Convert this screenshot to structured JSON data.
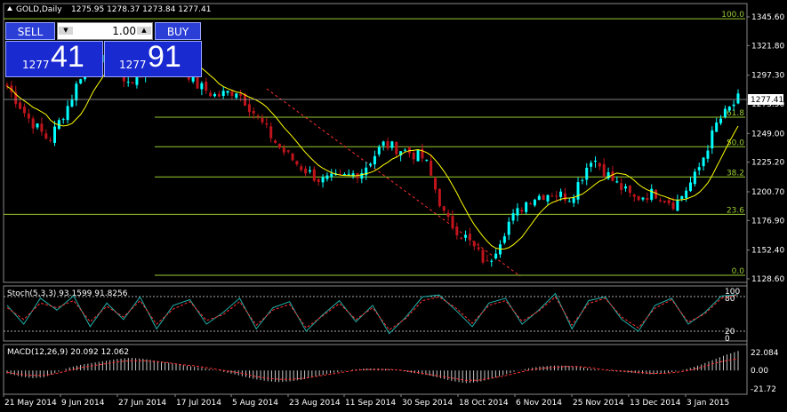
{
  "window": {
    "header_icon": "triangle-up-icon",
    "symbol_label": "GOLD,Daily",
    "ohlc": "1275.95 1278.37 1273.84 1277.41"
  },
  "trade_panel": {
    "sell_label": "SELL",
    "buy_label": "BUY",
    "lot_value": "1.00",
    "sell_price_prefix": "1277",
    "sell_price_big": "41",
    "buy_price_prefix": "1277",
    "buy_price_big": "91",
    "colors": {
      "button": "#2b3fd6",
      "price_box": "#1a2ad1"
    }
  },
  "price_axis": {
    "ticks": [
      "1345.60",
      "1321.80",
      "1297.30",
      "1273.50",
      "1249.00",
      "1225.20",
      "1200.70",
      "1176.90",
      "1152.40",
      "1128.60"
    ],
    "current_price_label": "1277.41"
  },
  "fibonacci": {
    "levels": [
      {
        "label": "100.0",
        "price": 1344.0
      },
      {
        "label": "61.8",
        "price": 1262.5
      },
      {
        "label": "50.0",
        "price": 1238.0
      },
      {
        "label": "38.2",
        "price": 1213.0
      },
      {
        "label": "23.6",
        "price": 1182.0
      },
      {
        "label": "0.0",
        "price": 1131.5
      }
    ],
    "color": "#9acd32"
  },
  "stochastic": {
    "label": "Stoch(5,3,3) 93.1599 91.8256",
    "axis_labels": [
      "100",
      "80",
      "20",
      "0"
    ]
  },
  "macd": {
    "label": "MACD(12,26,9) 20.092 12.062",
    "axis_labels": [
      "22.084",
      "0.00",
      "-21.72"
    ]
  },
  "time_axis": {
    "labels": [
      "21 May 2014",
      "9 Jun 2014",
      "27 Jun 2014",
      "17 Jul 2014",
      "5 Aug 2014",
      "23 Aug 2014",
      "11 Sep 2014",
      "30 Sep 2014",
      "18 Oct 2014",
      "6 Nov 2014",
      "25 Nov 2014",
      "13 Dec 2014",
      "3 Jan 2015"
    ]
  },
  "chart_data": [
    {
      "type": "candlestick",
      "title": "GOLD,Daily",
      "ylim": [
        1128.6,
        1345.6
      ],
      "x_dates": [
        "2014-05-21",
        "2014-06-09",
        "2014-06-27",
        "2014-07-17",
        "2014-08-05",
        "2014-08-23",
        "2014-09-11",
        "2014-09-30",
        "2014-10-18",
        "2014-11-06",
        "2014-11-25",
        "2014-12-13",
        "2015-01-03",
        "2015-01-12"
      ],
      "close_path": [
        1288,
        1262,
        1243,
        1275,
        1318,
        1303,
        1290,
        1311,
        1316,
        1290,
        1280,
        1285,
        1262,
        1238,
        1222,
        1210,
        1212,
        1218,
        1240,
        1235,
        1228,
        1178,
        1162,
        1140,
        1175,
        1195,
        1200,
        1196,
        1230,
        1210,
        1195,
        1200,
        1190,
        1215,
        1258,
        1277.4
      ],
      "moving_average_color": "#ffff00",
      "up_color": "#00ffff",
      "down_color": "#c0141c"
    },
    {
      "type": "line",
      "title": "Stoch(5,3,3)",
      "ylim": [
        0,
        100
      ],
      "series": [
        {
          "name": "main",
          "values": [
            70,
            30,
            85,
            60,
            90,
            25,
            75,
            40,
            88,
            20,
            70,
            82,
            30,
            55,
            85,
            20,
            65,
            78,
            15,
            50,
            80,
            35,
            70,
            10,
            45,
            88,
            92,
            60,
            25,
            75,
            85,
            30,
            60,
            95,
            20,
            80,
            88,
            40,
            15,
            70,
            85,
            30,
            55,
            90,
            93
          ]
        },
        {
          "name": "signal",
          "values": [
            65,
            40,
            75,
            65,
            80,
            35,
            68,
            45,
            80,
            30,
            62,
            78,
            38,
            50,
            78,
            28,
            60,
            72,
            22,
            48,
            74,
            40,
            65,
            18,
            42,
            80,
            88,
            65,
            32,
            70,
            80,
            36,
            58,
            88,
            28,
            74,
            85,
            45,
            22,
            64,
            82,
            34,
            52,
            85,
            92
          ]
        }
      ]
    },
    {
      "type": "bar",
      "title": "MACD(12,26,9)",
      "ylim": [
        -21.72,
        22.084
      ],
      "values": [
        -3,
        -6,
        -8,
        -7,
        -2,
        3,
        6,
        8,
        10,
        12,
        13,
        12,
        10,
        8,
        6,
        4,
        2,
        0,
        -3,
        -6,
        -9,
        -11,
        -12,
        -11,
        -9,
        -6,
        -3,
        -1,
        1,
        2,
        2,
        1,
        -1,
        -3,
        -5,
        -8,
        -11,
        -13,
        -12,
        -9,
        -5,
        -1,
        2,
        4,
        5,
        5,
        4,
        2,
        0,
        -1,
        -2,
        -3,
        -4,
        -3,
        -1,
        2,
        6,
        11,
        16,
        20
      ],
      "signal_values": [
        -2,
        -4,
        -5,
        -5,
        -3,
        0,
        3,
        5,
        7,
        9,
        10,
        10,
        9,
        8,
        6,
        5,
        3,
        1,
        -1,
        -3,
        -6,
        -8,
        -9,
        -9,
        -8,
        -6,
        -4,
        -2,
        0,
        1,
        1,
        1,
        0,
        -2,
        -4,
        -6,
        -8,
        -10,
        -10,
        -8,
        -6,
        -3,
        0,
        2,
        3,
        4,
        4,
        3,
        1,
        0,
        -1,
        -2,
        -3,
        -3,
        -2,
        0,
        3,
        7,
        10,
        12
      ]
    }
  ]
}
